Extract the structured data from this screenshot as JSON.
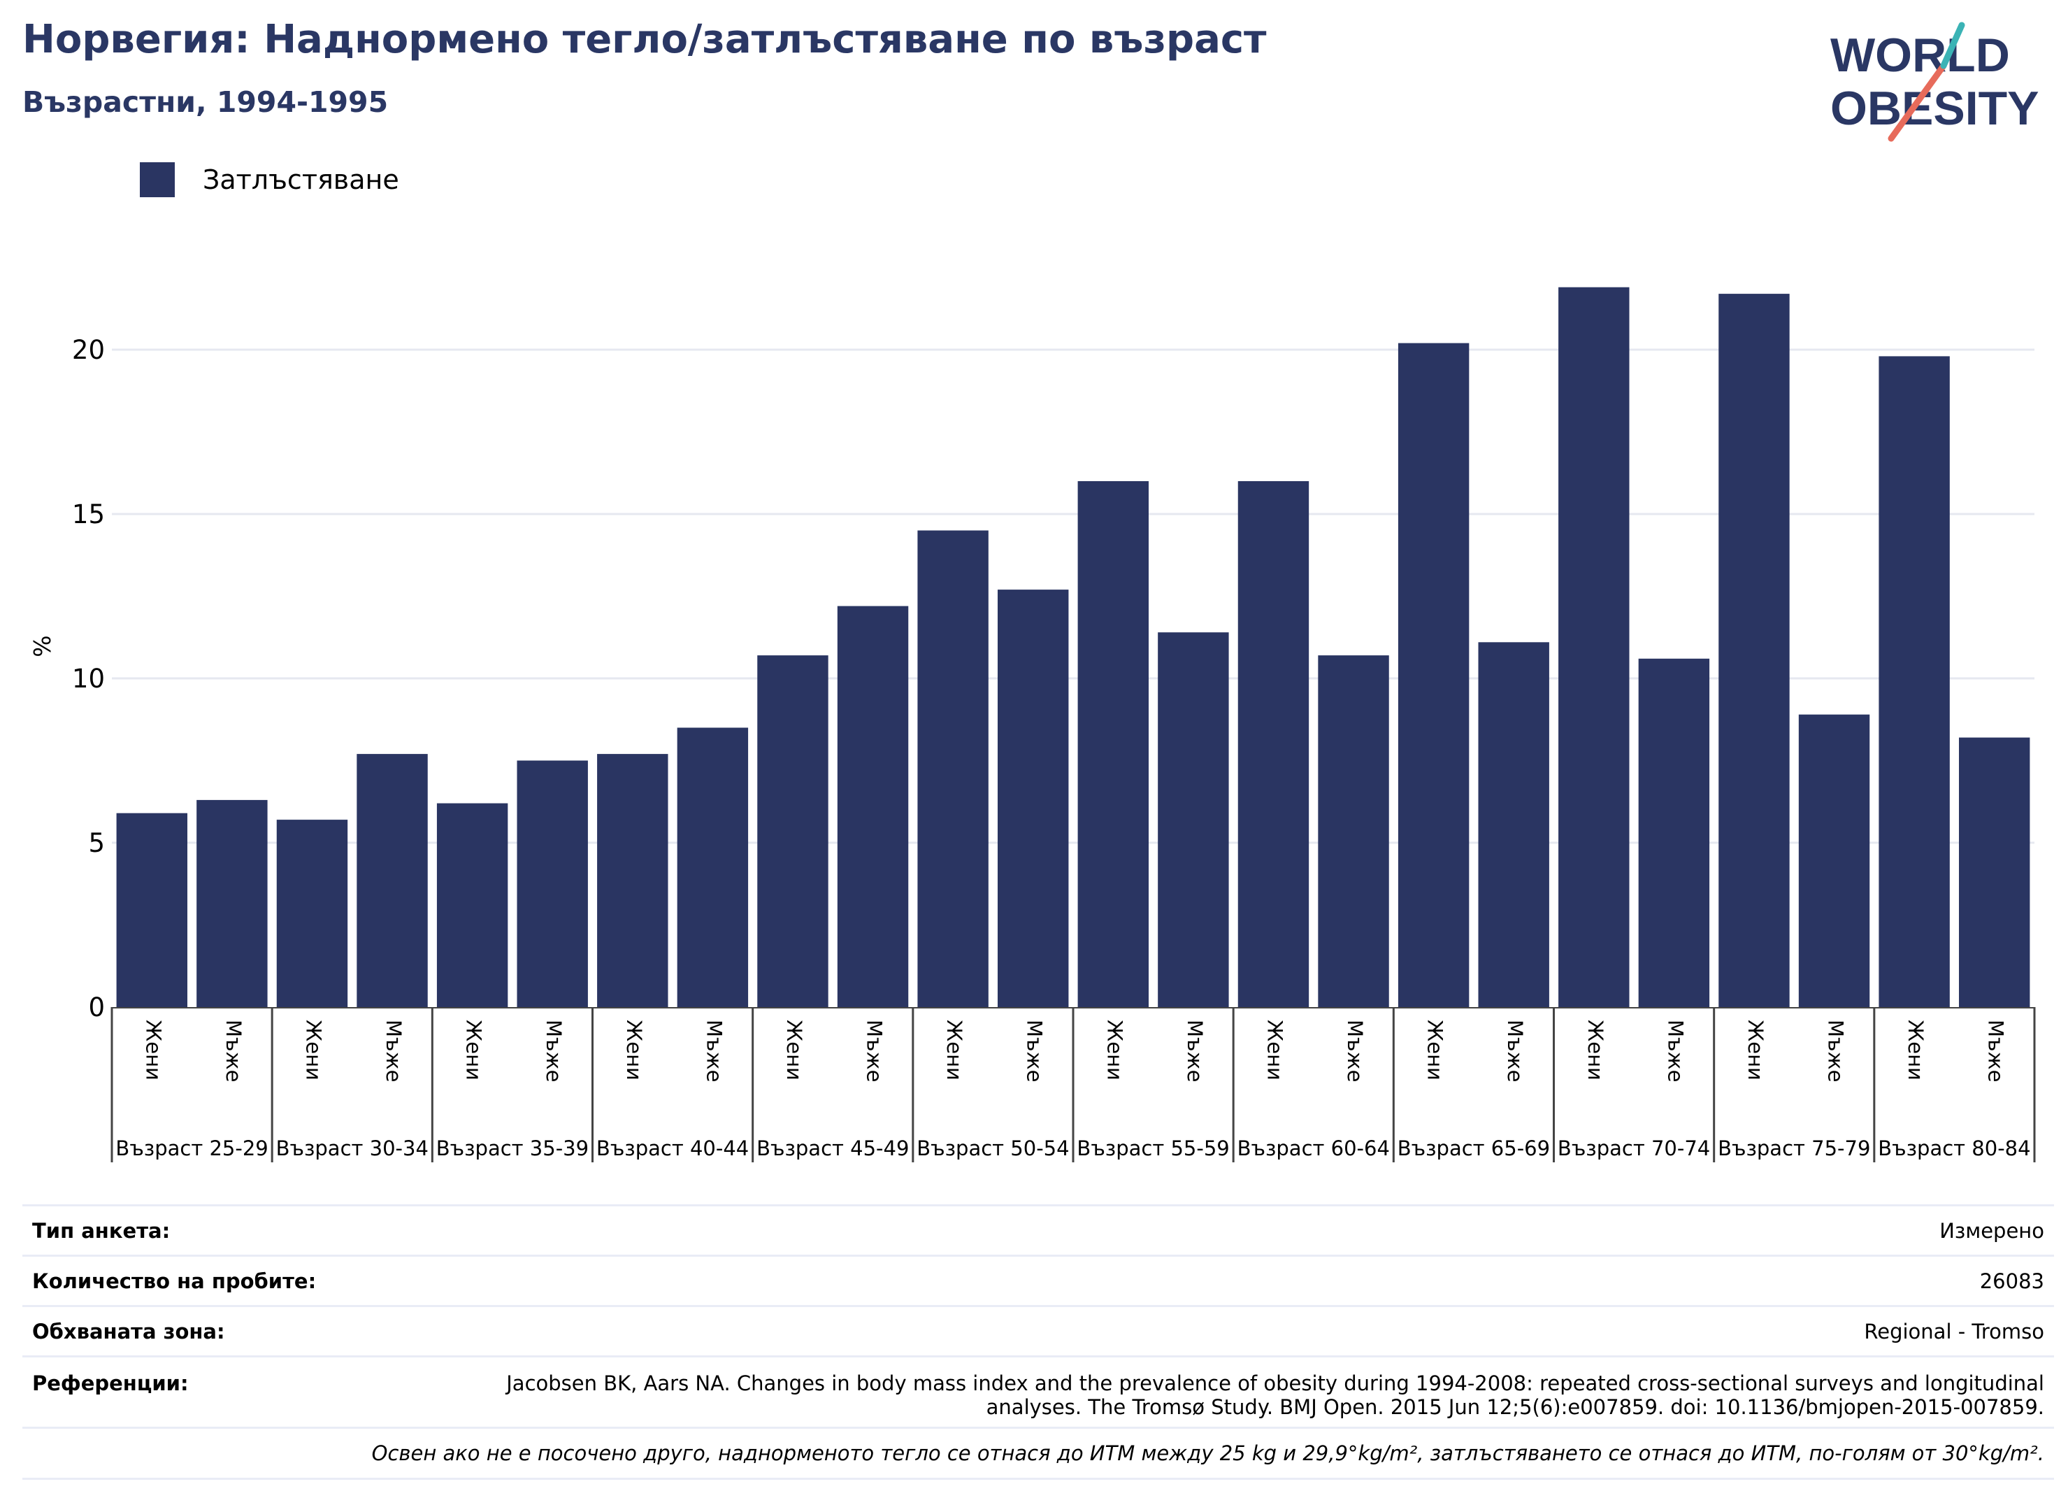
{
  "header": {
    "title": "Норвегия: Наднормено тегло/затлъстяване по възраст",
    "subtitle": "Възрастни, 1994-1995"
  },
  "logo": {
    "line1": "WORLD",
    "line2": "OBESITY"
  },
  "colors": {
    "bar": "#2a3562",
    "title": "#2a3764",
    "grid": "#e6e8f0",
    "accent_teal": "#3bb3b5",
    "accent_coral": "#e76b5b"
  },
  "chart_data": {
    "type": "bar",
    "ylabel": "%",
    "ylim": [
      0,
      24
    ],
    "yticks": [
      0,
      5,
      10,
      15,
      20
    ],
    "grid": true,
    "legend_position": "top-left",
    "series": [
      {
        "name": "Затлъстяване",
        "values": [
          5.9,
          6.3,
          5.7,
          7.7,
          6.2,
          7.5,
          7.7,
          8.5,
          10.7,
          12.2,
          14.5,
          12.7,
          16.0,
          11.4,
          16.0,
          10.7,
          20.2,
          11.1,
          21.9,
          10.6,
          21.7,
          8.9,
          19.8,
          8.2
        ]
      }
    ],
    "sex_labels": [
      "Жени",
      "Мъже"
    ],
    "groups": [
      "Възраст 25-29",
      "Възраст 30-34",
      "Възраст 35-39",
      "Възраст 40-44",
      "Възраст 45-49",
      "Възраст 50-54",
      "Възраст 55-59",
      "Възраст 60-64",
      "Възраст 65-69",
      "Възраст 70-74",
      "Възраст 75-79",
      "Възраст 80-84"
    ]
  },
  "info": {
    "survey_type_label": "Тип анкета:",
    "survey_type_value": "Измерено",
    "sample_size_label": "Количество на пробите:",
    "sample_size_value": "26083",
    "area_label": "Обхваната зона:",
    "area_value": "Regional - Tromso",
    "references_label": "Референции:",
    "references_value": "Jacobsen BK, Aars NA. Changes in body mass index and the prevalence of obesity during 1994-2008: repeated cross-sectional surveys and longitudinal analyses. The Tromsø Study. BMJ Open. 2015 Jun 12;5(6):e007859. doi: 10.1136/bmjopen-2015-007859.",
    "note": "Освен ако не е посочено друго, наднорменото тегло се отнася до ИТМ между 25 kg и 29,9°kg/m², затлъстяването се отнася до ИТМ, по-голям от 30°kg/m²."
  }
}
